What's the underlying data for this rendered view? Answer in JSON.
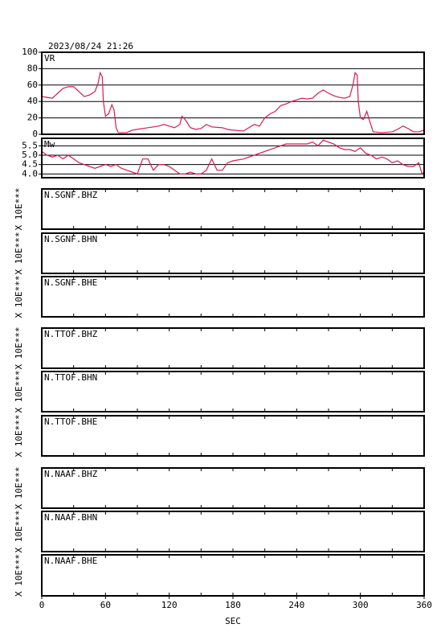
{
  "chart_data": [
    {
      "type": "line",
      "title": "2023/08/24 21:26",
      "label": "VR",
      "color": "#d81b50",
      "x": [
        0,
        5,
        10,
        15,
        20,
        25,
        30,
        35,
        40,
        45,
        50,
        53,
        55,
        57,
        58,
        60,
        63,
        66,
        68,
        70,
        72,
        80,
        85,
        90,
        100,
        110,
        115,
        120,
        125,
        130,
        132,
        135,
        140,
        145,
        150,
        155,
        160,
        170,
        175,
        180,
        190,
        200,
        205,
        210,
        215,
        220,
        225,
        230,
        235,
        240,
        245,
        250,
        255,
        260,
        265,
        270,
        275,
        280,
        285,
        290,
        293,
        295,
        297,
        298,
        300,
        303,
        306,
        309,
        312,
        320,
        330,
        335,
        340,
        345,
        350,
        355,
        360
      ],
      "values": [
        46,
        45,
        44,
        50,
        56,
        58,
        58,
        52,
        46,
        48,
        52,
        62,
        75,
        70,
        40,
        22,
        25,
        36,
        30,
        8,
        2,
        2,
        5,
        6,
        8,
        10,
        12,
        10,
        8,
        12,
        22,
        18,
        8,
        6,
        7,
        12,
        9,
        8,
        6,
        5,
        4,
        12,
        10,
        20,
        25,
        28,
        35,
        37,
        40,
        42,
        44,
        43,
        44,
        50,
        54,
        50,
        47,
        45,
        44,
        46,
        60,
        75,
        72,
        40,
        20,
        18,
        28,
        15,
        3,
        2,
        3,
        6,
        10,
        7,
        3,
        3,
        5
      ],
      "xlim": [
        0,
        360
      ],
      "ylim": [
        0,
        100
      ],
      "yticks": [
        0,
        20,
        40,
        60,
        80,
        100
      ],
      "grid": true
    },
    {
      "type": "line",
      "label": "Mw",
      "color": "#d81b50",
      "x": [
        0,
        5,
        10,
        15,
        20,
        25,
        30,
        35,
        40,
        45,
        50,
        55,
        60,
        65,
        70,
        75,
        80,
        85,
        90,
        95,
        100,
        105,
        110,
        115,
        120,
        125,
        130,
        135,
        140,
        145,
        150,
        155,
        160,
        165,
        170,
        175,
        180,
        190,
        200,
        210,
        220,
        230,
        240,
        250,
        255,
        260,
        265,
        270,
        275,
        280,
        285,
        290,
        295,
        300,
        305,
        310,
        315,
        320,
        325,
        330,
        335,
        340,
        345,
        350,
        355,
        358,
        360
      ],
      "values": [
        5.2,
        5.0,
        4.9,
        5.0,
        4.8,
        5.0,
        4.8,
        4.6,
        4.5,
        4.4,
        4.3,
        4.4,
        4.5,
        4.4,
        4.5,
        4.3,
        4.2,
        4.1,
        4.0,
        4.8,
        4.8,
        4.2,
        4.5,
        4.5,
        4.4,
        4.2,
        4.0,
        4.0,
        4.1,
        4.0,
        4.0,
        4.2,
        4.8,
        4.2,
        4.2,
        4.6,
        4.7,
        4.8,
        5.0,
        5.2,
        5.4,
        5.6,
        5.6,
        5.6,
        5.7,
        5.5,
        5.8,
        5.7,
        5.6,
        5.4,
        5.3,
        5.3,
        5.2,
        5.4,
        5.1,
        5.0,
        4.8,
        4.9,
        4.8,
        4.6,
        4.7,
        4.5,
        4.4,
        4.4,
        4.6,
        4.0,
        4.1
      ],
      "xlim": [
        0,
        360
      ],
      "ylim": [
        3.8,
        5.9
      ],
      "yticks": [
        {
          "value": 4,
          "label": "4.0"
        },
        4.5,
        {
          "value": 5,
          "label": "5.0"
        },
        5.5
      ],
      "grid": true
    },
    {
      "type": "waveform",
      "label": "N.SGNF.BHZ",
      "ylabel": "X 10E***",
      "xlim": [
        0,
        360
      ],
      "minor_xticks": [
        30,
        60,
        90,
        120,
        150,
        180,
        210,
        240,
        270,
        300,
        330
      ]
    },
    {
      "type": "waveform",
      "label": "N.SGNF.BHN",
      "ylabel": "X 10E***",
      "xlim": [
        0,
        360
      ],
      "minor_xticks": [
        30,
        60,
        90,
        120,
        150,
        180,
        210,
        240,
        270,
        300,
        330
      ]
    },
    {
      "type": "waveform",
      "label": "N.SGNF.BHE",
      "ylabel": "X 10E***",
      "xlim": [
        0,
        360
      ],
      "minor_xticks": [
        30,
        60,
        90,
        120,
        150,
        180,
        210,
        240,
        270,
        300,
        330
      ]
    },
    {
      "type": "waveform",
      "label": "N.TTOF.BHZ",
      "ylabel": "X 10E***",
      "xlim": [
        0,
        360
      ],
      "minor_xticks": [
        30,
        60,
        90,
        120,
        150,
        180,
        210,
        240,
        270,
        300,
        330
      ]
    },
    {
      "type": "waveform",
      "label": "N.TTOF.BHN",
      "ylabel": "X 10E***",
      "xlim": [
        0,
        360
      ],
      "minor_xticks": [
        30,
        60,
        90,
        120,
        150,
        180,
        210,
        240,
        270,
        300,
        330
      ]
    },
    {
      "type": "waveform",
      "label": "N.TTOF.BHE",
      "ylabel": "X 10E***",
      "xlim": [
        0,
        360
      ],
      "minor_xticks": [
        30,
        60,
        90,
        120,
        150,
        180,
        210,
        240,
        270,
        300,
        330
      ]
    },
    {
      "type": "waveform",
      "label": "N.NAAF.BHZ",
      "ylabel": "X 10E***",
      "xlim": [
        0,
        360
      ],
      "minor_xticks": [
        30,
        60,
        90,
        120,
        150,
        180,
        210,
        240,
        270,
        300,
        330
      ]
    },
    {
      "type": "waveform",
      "label": "N.NAAF.BHN",
      "ylabel": "X 10E***",
      "xlim": [
        0,
        360
      ],
      "minor_xticks": [
        30,
        60,
        90,
        120,
        150,
        180,
        210,
        240,
        270,
        300,
        330
      ]
    },
    {
      "type": "waveform",
      "label": "N.NAAF.BHE",
      "ylabel": "X 10E***",
      "xlim": [
        0,
        360
      ],
      "minor_xticks": [
        30,
        60,
        90,
        120,
        150,
        180,
        210,
        240,
        270,
        300,
        330
      ],
      "xticks": [
        0,
        60,
        120,
        180,
        240,
        300,
        360
      ],
      "xlabel": "SEC"
    }
  ]
}
